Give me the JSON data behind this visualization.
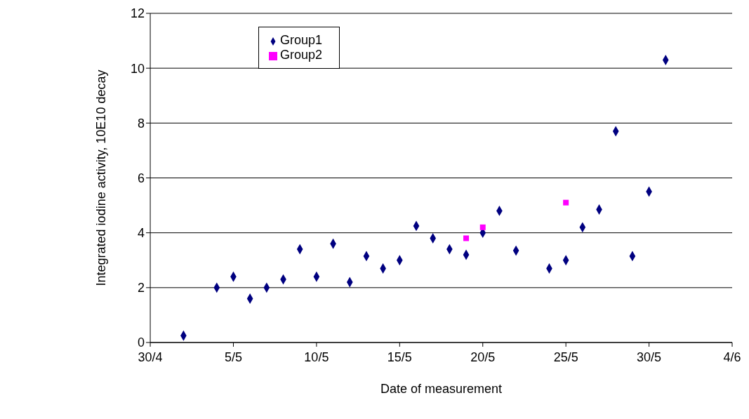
{
  "chart_data": {
    "type": "scatter",
    "xlabel": "Date of measurement",
    "ylabel": "Integrated iodine activity, 10E10 decay",
    "xlim": [
      "--04-30",
      "--06-04"
    ],
    "xticks": [
      {
        "value": "--04-30",
        "label": "30/4"
      },
      {
        "value": "--05-05",
        "label": "5/5"
      },
      {
        "value": "--05-10",
        "label": "10/5"
      },
      {
        "value": "--05-15",
        "label": "15/5"
      },
      {
        "value": "--05-20",
        "label": "20/5"
      },
      {
        "value": "--05-25",
        "label": "25/5"
      },
      {
        "value": "--05-30",
        "label": "30/5"
      },
      {
        "value": "--06-04",
        "label": "4/6"
      }
    ],
    "ylim": [
      0,
      12
    ],
    "yticks": [
      0,
      2,
      4,
      6,
      8,
      10,
      12
    ],
    "grid": "y",
    "legend": "top left",
    "series": [
      {
        "name": "Group1",
        "color": "#000080",
        "marker": "diamond",
        "x": [
          "--05-02",
          "--05-04",
          "--05-05",
          "--05-06",
          "--05-07",
          "--05-08",
          "--05-09",
          "--05-10",
          "--05-11",
          "--05-12",
          "--05-13",
          "--05-14",
          "--05-15",
          "--05-16",
          "--05-17",
          "--05-18",
          "--05-19",
          "--05-20",
          "--05-21",
          "--05-22",
          "--05-24",
          "--05-25",
          "--05-26",
          "--05-27",
          "--05-28",
          "--05-29",
          "--05-30",
          "--05-31"
        ],
        "values": [
          0.25,
          2.0,
          2.4,
          1.6,
          2.0,
          2.3,
          3.4,
          2.4,
          3.6,
          2.2,
          3.15,
          2.7,
          3.0,
          4.25,
          3.8,
          3.4,
          3.2,
          4.0,
          4.8,
          3.35,
          2.7,
          3.0,
          4.2,
          4.85,
          7.7,
          3.15,
          5.5,
          10.3
        ]
      },
      {
        "name": "Group2",
        "color": "#ff00ff",
        "marker": "square",
        "x": [
          "--05-19",
          "--05-20",
          "--05-25"
        ],
        "values": [
          3.8,
          4.2,
          5.1
        ]
      }
    ]
  }
}
